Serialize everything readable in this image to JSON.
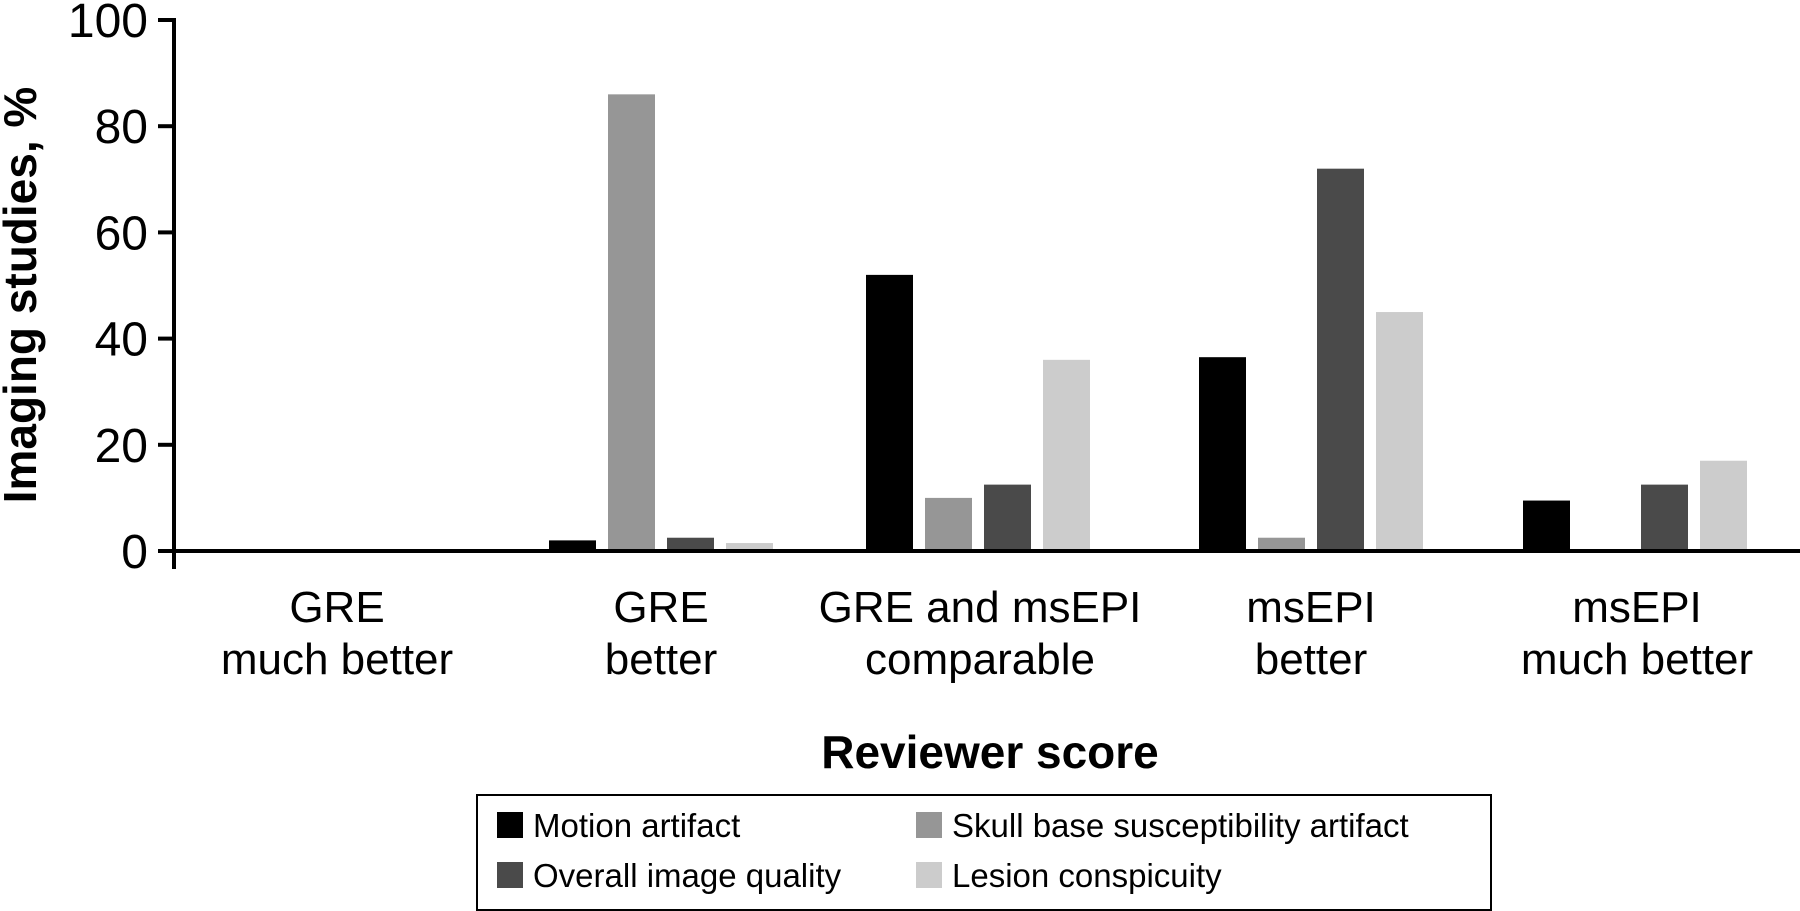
{
  "chart_data": {
    "type": "bar",
    "xlabel": "Reviewer score",
    "ylabel": "Imaging studies, %",
    "ylim": [
      0,
      100
    ],
    "yticks": [
      0,
      20,
      40,
      60,
      80,
      100
    ],
    "categories": [
      [
        "GRE",
        "much better"
      ],
      [
        "GRE",
        "better"
      ],
      [
        "GRE and msEPI",
        "comparable"
      ],
      [
        "msEPI",
        "better"
      ],
      [
        "msEPI",
        "much better"
      ]
    ],
    "series": [
      {
        "name": "Motion artifact",
        "color": "#000000",
        "values": [
          0,
          2,
          52,
          36.5,
          9.5
        ]
      },
      {
        "name": "Skull base susceptibility artifact",
        "color": "#969696",
        "values": [
          0.3,
          86,
          10,
          2.5,
          0
        ]
      },
      {
        "name": "Overall image quality",
        "color": "#4a4a4a",
        "values": [
          0,
          2.5,
          12.5,
          72,
          12.5
        ]
      },
      {
        "name": "Lesion conspicuity",
        "color": "#cccccc",
        "values": [
          0,
          1.5,
          36,
          45,
          17
        ]
      }
    ],
    "legend": {
      "position": "bottom",
      "columns": 2
    },
    "grid": false
  }
}
